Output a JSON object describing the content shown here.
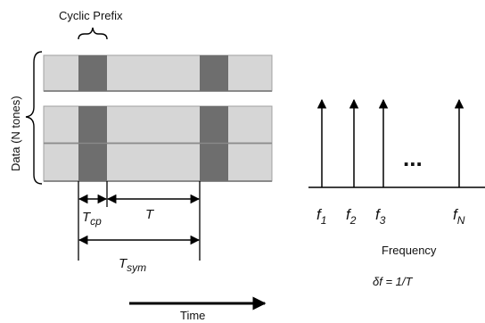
{
  "time_domain": {
    "cyclic_prefix_label": "Cyclic Prefix",
    "data_label": "Data (N tones)",
    "tcp_main": "T",
    "tcp_sub": "cp",
    "t_label": "T",
    "tsym_main": "T",
    "tsym_sub": "sym",
    "time_label": "Time",
    "rows": 3
  },
  "frequency_domain": {
    "labels": [
      {
        "main": "f",
        "sub": "1"
      },
      {
        "main": "f",
        "sub": "2"
      },
      {
        "main": "f",
        "sub": "3"
      },
      {
        "main": "f",
        "sub": "N"
      }
    ],
    "ellipsis": "...",
    "frequency_label": "Frequency",
    "spacing_formula": "δf = 1/T"
  },
  "colors": {
    "band_fill": "#d6d6d6",
    "band_edge": "#9a9a9a",
    "cp_fill": "#6e6e6e",
    "line": "#000000"
  }
}
